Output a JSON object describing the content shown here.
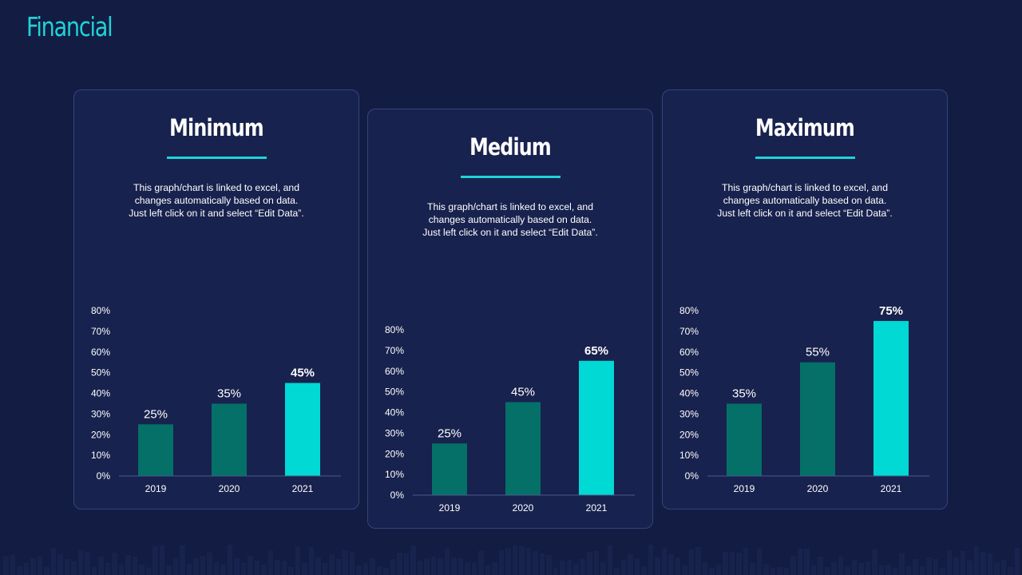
{
  "page": {
    "title": "Financial"
  },
  "colors": {
    "background": "#131c42",
    "card": "#18224e",
    "accent": "#1fd3d8",
    "bar_dark": "#047068",
    "bar_highlight": "#00d9d4"
  },
  "cards": [
    {
      "title": "Minimum",
      "description": "This graph/chart is linked to excel, and\nchanges automatically based on data.\nJust left click on it and select “Edit Data”."
    },
    {
      "title": "Medium",
      "description": "This graph/chart is linked to excel, and\nchanges automatically based on data.\nJust left click on it and select “Edit Data”."
    },
    {
      "title": "Maximum",
      "description": "This graph/chart is linked to excel, and\nchanges automatically based on data.\nJust left click on it and select “Edit Data”."
    }
  ],
  "chart_data": [
    {
      "type": "bar",
      "categories": [
        "2019",
        "2020",
        "2021"
      ],
      "values": [
        25,
        35,
        45
      ],
      "data_labels": [
        "25%",
        "35%",
        "45%"
      ],
      "highlight_index": 2,
      "ylim": [
        0,
        80
      ],
      "yticks": [
        "0%",
        "10%",
        "20%",
        "30%",
        "40%",
        "50%",
        "60%",
        "70%",
        "80%"
      ],
      "grid": false
    },
    {
      "type": "bar",
      "categories": [
        "2019",
        "2020",
        "2021"
      ],
      "values": [
        25,
        45,
        65
      ],
      "data_labels": [
        "25%",
        "45%",
        "65%"
      ],
      "highlight_index": 2,
      "ylim": [
        0,
        80
      ],
      "yticks": [
        "0%",
        "10%",
        "20%",
        "30%",
        "40%",
        "50%",
        "60%",
        "70%",
        "80%"
      ],
      "grid": false
    },
    {
      "type": "bar",
      "categories": [
        "2019",
        "2020",
        "2021"
      ],
      "values": [
        35,
        55,
        75
      ],
      "data_labels": [
        "35%",
        "55%",
        "75%"
      ],
      "highlight_index": 2,
      "ylim": [
        0,
        80
      ],
      "yticks": [
        "0%",
        "10%",
        "20%",
        "30%",
        "40%",
        "50%",
        "60%",
        "70%",
        "80%"
      ],
      "grid": false
    }
  ]
}
